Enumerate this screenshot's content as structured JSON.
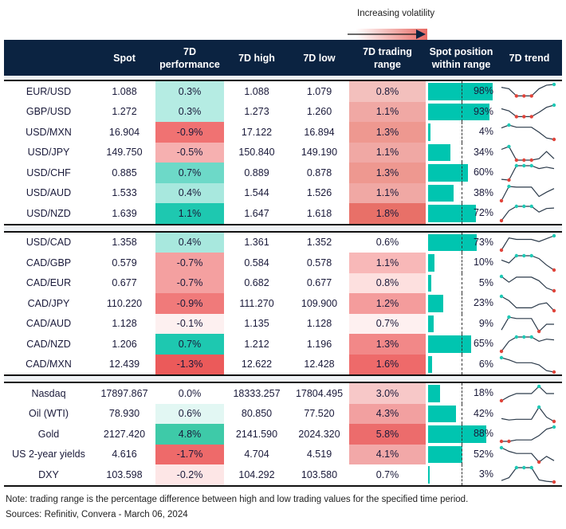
{
  "legend": {
    "label": "Increasing volatility"
  },
  "headers": [
    "",
    "Spot",
    "7D performance",
    "7D high",
    "7D low",
    "7D trading range",
    "Spot position within range",
    "7D trend"
  ],
  "colors": {
    "header_bg": "#0b2341",
    "bar": "#00c5b0",
    "max_marker": "#1fc9b5",
    "min_marker": "#e0443a",
    "line": "#2b3a4a"
  },
  "groups": [
    [
      {
        "name": "EUR/USD",
        "spot": "1.088",
        "perf": "0.3%",
        "perf_color": "#b5ece3",
        "high": "1.088",
        "low": "1.079",
        "range": "0.8%",
        "range_color": "#f3c0bd",
        "position": 98,
        "trend": [
          0.8,
          0.7,
          0.2,
          0.2,
          0.2,
          0.7,
          0.95,
          1
        ]
      },
      {
        "name": "GBP/USD",
        "spot": "1.272",
        "perf": "0.3%",
        "perf_color": "#b5ece3",
        "high": "1.273",
        "low": "1.260",
        "range": "1.1%",
        "range_color": "#f0a8a4",
        "position": 93,
        "trend": [
          0.75,
          0.6,
          0.2,
          0.2,
          0.2,
          0.5,
          0.85,
          1
        ]
      },
      {
        "name": "USD/MXN",
        "spot": "16.904",
        "perf": "-0.9%",
        "perf_color": "#f07272",
        "high": "17.122",
        "low": "16.894",
        "range": "1.3%",
        "range_color": "#ee9890",
        "position": 4,
        "trend": [
          0.8,
          1,
          0.85,
          0.85,
          0.85,
          0.5,
          0.1,
          0
        ]
      },
      {
        "name": "USD/JPY",
        "spot": "149.750",
        "perf": "-0.5%",
        "perf_color": "#f6b0b0",
        "high": "150.840",
        "low": "149.190",
        "range": "1.1%",
        "range_color": "#f0a8a4",
        "position": 34,
        "trend": [
          0.75,
          0.95,
          0,
          0,
          0,
          0.1,
          0.6,
          0.1
        ]
      },
      {
        "name": "USD/CHF",
        "spot": "0.885",
        "perf": "0.7%",
        "perf_color": "#6dd9c8",
        "high": "0.889",
        "low": "0.878",
        "range": "1.3%",
        "range_color": "#ee9890",
        "position": 60,
        "trend": [
          0.05,
          0,
          1,
          1,
          1,
          0.8,
          0.9,
          0.8
        ]
      },
      {
        "name": "USD/AUD",
        "spot": "1.533",
        "perf": "0.4%",
        "perf_color": "#a8e8de",
        "high": "1.544",
        "low": "1.526",
        "range": "1.1%",
        "range_color": "#f0a8a4",
        "position": 38,
        "trend": [
          0,
          1,
          0.95,
          0.95,
          0.95,
          0.3,
          0.6,
          0.85
        ]
      },
      {
        "name": "USD/NZD",
        "spot": "1.639",
        "perf": "1.1%",
        "perf_color": "#1ec8b0",
        "high": "1.647",
        "low": "1.618",
        "range": "1.8%",
        "range_color": "#e87068",
        "position": 72,
        "trend": [
          0,
          0.7,
          1,
          1,
          1,
          0.6,
          0.85,
          0.88
        ]
      }
    ],
    [
      {
        "name": "USD/CAD",
        "spot": "1.358",
        "perf": "0.4%",
        "perf_color": "#a8e8de",
        "high": "1.361",
        "low": "1.352",
        "range": "0.6%",
        "range_color": "#ffffff",
        "position": 73,
        "trend": [
          0,
          0.85,
          0.75,
          0.75,
          0.75,
          0.6,
          0.8,
          1
        ]
      },
      {
        "name": "CAD/GBP",
        "spot": "0.579",
        "perf": "-0.7%",
        "perf_color": "#f4a0a0",
        "high": "0.584",
        "low": "0.578",
        "range": "1.1%",
        "range_color": "#f8b8b8",
        "position": 10,
        "trend": [
          0.7,
          0.5,
          1,
          1,
          1,
          0.8,
          0.35,
          0
        ]
      },
      {
        "name": "CAD/EUR",
        "spot": "0.677",
        "perf": "-0.7%",
        "perf_color": "#f4a0a0",
        "high": "0.682",
        "low": "0.677",
        "range": "0.8%",
        "range_color": "#fde0df",
        "position": 5,
        "trend": [
          1,
          0.6,
          0.95,
          0.95,
          0.95,
          0.7,
          0.2,
          0
        ]
      },
      {
        "name": "CAD/JPY",
        "spot": "110.220",
        "perf": "-0.9%",
        "perf_color": "#f07a7a",
        "high": "111.270",
        "low": "109.900",
        "range": "1.2%",
        "range_color": "#f49c9c",
        "position": 23,
        "trend": [
          1,
          0.7,
          0.2,
          0.2,
          0.2,
          0.45,
          0.55,
          0
        ]
      },
      {
        "name": "CAD/AUD",
        "spot": "1.128",
        "perf": "-0.1%",
        "perf_color": "#fdf0f0",
        "high": "1.135",
        "low": "1.128",
        "range": "0.7%",
        "range_color": "#fef0f0",
        "position": 9,
        "trend": [
          0.1,
          1,
          0.9,
          0.9,
          0.9,
          0,
          0.5,
          0.5
        ]
      },
      {
        "name": "CAD/NZD",
        "spot": "1.206",
        "perf": "0.7%",
        "perf_color": "#1ec8b0",
        "high": "1.212",
        "low": "1.196",
        "range": "1.3%",
        "range_color": "#f28888",
        "position": 65,
        "trend": [
          0,
          0.7,
          1,
          1,
          1,
          0.7,
          0.85,
          0.8
        ]
      },
      {
        "name": "CAD/MXN",
        "spot": "12.439",
        "perf": "-1.3%",
        "perf_color": "#eb5a5a",
        "high": "12.622",
        "low": "12.428",
        "range": "1.6%",
        "range_color": "#ee6a6a",
        "position": 6,
        "trend": [
          1,
          0.85,
          0.65,
          0.65,
          0.65,
          0.5,
          0.1,
          0
        ]
      }
    ],
    [
      {
        "name": "Nasdaq",
        "spot": "17897.867",
        "perf": "0.0%",
        "perf_color": "#ffffff",
        "high": "18333.257",
        "low": "17804.495",
        "range": "3.0%",
        "range_color": "#f7c8c8",
        "position": 18,
        "trend": [
          0,
          0.3,
          0.5,
          0.5,
          0.5,
          1,
          0.5,
          0.5
        ]
      },
      {
        "name": "Oil (WTI)",
        "spot": "78.930",
        "perf": "0.6%",
        "perf_color": "#e2f7f3",
        "high": "80.850",
        "low": "77.520",
        "range": "4.3%",
        "range_color": "#f2a0a0",
        "position": 42,
        "trend": [
          0.2,
          0.1,
          0.15,
          0.15,
          0.15,
          1,
          0.3,
          0
        ]
      },
      {
        "name": "Gold",
        "spot": "2127.420",
        "perf": "4.8%",
        "perf_color": "#3ecaa8",
        "high": "2141.590",
        "low": "2024.320",
        "range": "5.8%",
        "range_color": "#ec6c6c",
        "position": 88,
        "trend": [
          0,
          0,
          0.1,
          0.1,
          0.1,
          0.4,
          0.85,
          1
        ]
      },
      {
        "name": "US 2-year yields",
        "spot": "4.616",
        "perf": "-1.7%",
        "perf_color": "#ee6a6a",
        "high": "4.704",
        "low": "4.519",
        "range": "4.1%",
        "range_color": "#f2a8a8",
        "position": 52,
        "trend": [
          1,
          0.75,
          0.6,
          0.6,
          0.6,
          0,
          0.4,
          0.1
        ]
      },
      {
        "name": "DXY",
        "spot": "103.598",
        "perf": "-0.2%",
        "perf_color": "#fde6e6",
        "high": "104.292",
        "low": "103.580",
        "range": "0.7%",
        "range_color": "#ffffff",
        "position": 3,
        "trend": [
          0.1,
          0.3,
          1,
          1,
          1,
          0.15,
          0.05,
          0
        ]
      }
    ]
  ],
  "footer": {
    "note": "Note: trading range is the percentage difference between high and low trading values for the specified time period.",
    "sources": "Sources: Refinitiv, Convera - March 06, 2024"
  }
}
